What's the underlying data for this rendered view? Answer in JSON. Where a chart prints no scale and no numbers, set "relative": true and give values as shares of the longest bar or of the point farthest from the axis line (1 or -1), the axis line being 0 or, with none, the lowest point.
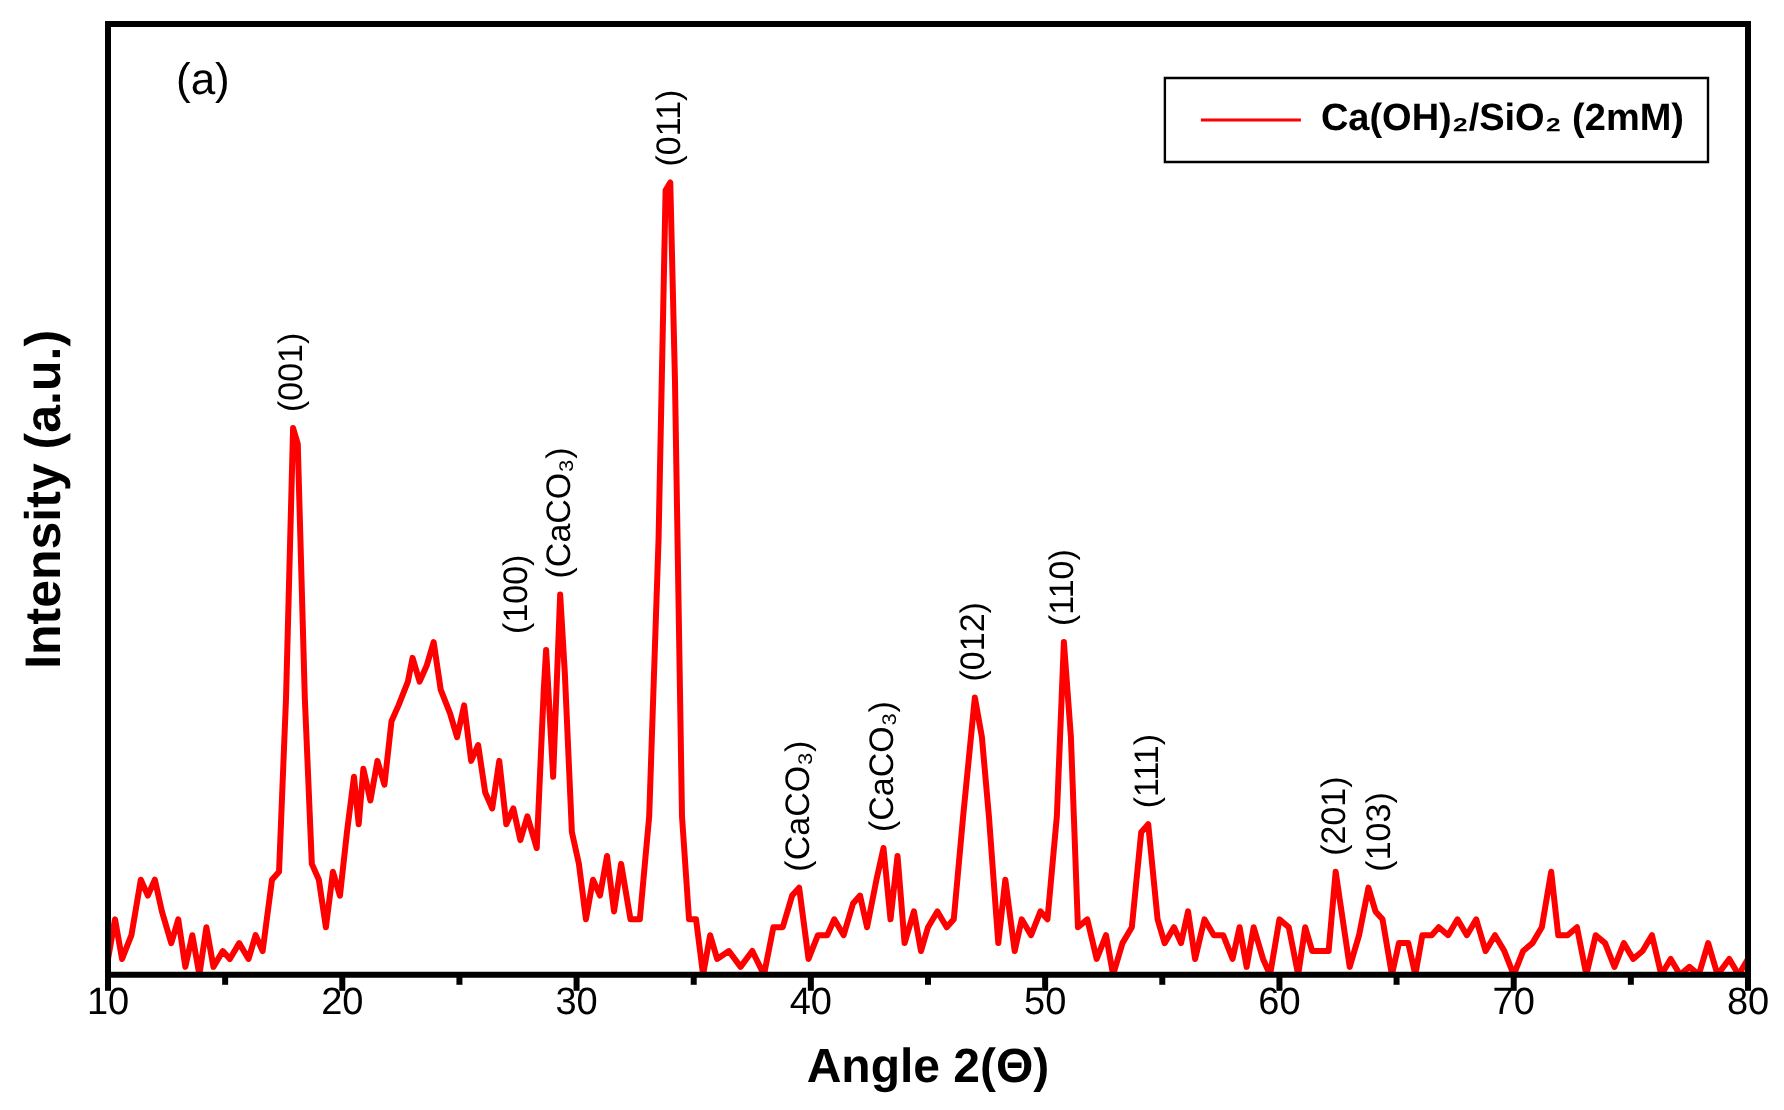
{
  "chart_data": {
    "type": "line",
    "relative": true,
    "xlabel": "Angle 2(Θ)",
    "ylabel": "Intensity (a.u.)",
    "xlim": [
      10,
      80
    ],
    "xticks": [
      10,
      {
        "value": 15,
        "label": null
      },
      20,
      {
        "value": 25,
        "label": null
      },
      30,
      {
        "value": 35,
        "label": null
      },
      40,
      {
        "value": 45,
        "label": null
      },
      50,
      {
        "value": 55,
        "label": null
      },
      60,
      {
        "value": 65,
        "label": null
      },
      70,
      {
        "value": 75,
        "label": null
      },
      80
    ],
    "grid": false,
    "legend": "top right",
    "marker": "none",
    "line_style": "solid",
    "series": [
      {
        "name": "Ca(OH)₂/SiO₂ (2mM)",
        "color": "#ff0000",
        "x": [
          10.0,
          10.3,
          10.6,
          11.0,
          11.4,
          11.7,
          12.0,
          12.3,
          12.7,
          13.0,
          13.3,
          13.6,
          13.9,
          14.2,
          14.5,
          14.9,
          15.2,
          15.6,
          16.0,
          16.3,
          16.6,
          17.0,
          17.3,
          17.6,
          17.9,
          18.1,
          18.4,
          18.7,
          19.0,
          19.3,
          19.6,
          19.9,
          20.2,
          20.5,
          20.7,
          20.9,
          21.2,
          21.5,
          21.8,
          22.1,
          22.4,
          22.8,
          23.0,
          23.3,
          23.6,
          23.9,
          24.2,
          24.6,
          24.9,
          25.2,
          25.5,
          25.8,
          26.1,
          26.4,
          26.7,
          27.0,
          27.3,
          27.6,
          27.9,
          28.3,
          28.6,
          28.7,
          29.0,
          29.3,
          29.5,
          29.8,
          30.1,
          30.4,
          30.7,
          31.0,
          31.3,
          31.6,
          31.9,
          32.3,
          32.7,
          33.1,
          33.5,
          33.8,
          34.0,
          34.2,
          34.5,
          34.8,
          35.1,
          35.4,
          35.7,
          36.0,
          36.5,
          37.0,
          37.5,
          38.0,
          38.4,
          38.8,
          39.2,
          39.5,
          39.9,
          40.3,
          40.7,
          41.0,
          41.4,
          41.8,
          42.1,
          42.4,
          42.8,
          43.1,
          43.4,
          43.7,
          44.0,
          44.4,
          44.7,
          45.0,
          45.4,
          45.8,
          46.1,
          46.5,
          47.0,
          47.3,
          47.6,
          48.0,
          48.3,
          48.7,
          49.0,
          49.4,
          49.8,
          50.1,
          50.5,
          50.8,
          51.1,
          51.4,
          51.8,
          52.2,
          52.6,
          52.9,
          53.3,
          53.7,
          54.1,
          54.4,
          54.8,
          55.1,
          55.5,
          55.8,
          56.1,
          56.4,
          56.8,
          57.2,
          57.6,
          58.0,
          58.3,
          58.6,
          58.9,
          59.3,
          59.6,
          60.0,
          60.4,
          60.8,
          61.1,
          61.4,
          61.8,
          62.1,
          62.4,
          62.7,
          63.0,
          63.4,
          63.8,
          64.1,
          64.4,
          64.8,
          65.1,
          65.5,
          65.8,
          66.1,
          66.5,
          66.8,
          67.2,
          67.6,
          68.0,
          68.4,
          68.8,
          69.2,
          69.6,
          70.0,
          70.4,
          70.8,
          71.2,
          71.6,
          71.9,
          72.3,
          72.7,
          73.1,
          73.5,
          73.9,
          74.3,
          74.7,
          75.1,
          75.5,
          75.9,
          76.3,
          76.7,
          77.1,
          77.5,
          77.9,
          78.3,
          78.7,
          79.2,
          79.6,
          80.0
        ],
        "values": [
          0.02,
          0.07,
          0.02,
          0.05,
          0.12,
          0.1,
          0.12,
          0.08,
          0.04,
          0.07,
          0.01,
          0.05,
          0.0,
          0.06,
          0.01,
          0.03,
          0.02,
          0.04,
          0.02,
          0.05,
          0.03,
          0.12,
          0.13,
          0.35,
          0.69,
          0.67,
          0.35,
          0.14,
          0.12,
          0.06,
          0.13,
          0.1,
          0.18,
          0.25,
          0.19,
          0.26,
          0.22,
          0.27,
          0.24,
          0.32,
          0.34,
          0.37,
          0.4,
          0.37,
          0.39,
          0.42,
          0.36,
          0.33,
          0.3,
          0.34,
          0.27,
          0.29,
          0.23,
          0.21,
          0.27,
          0.19,
          0.21,
          0.17,
          0.2,
          0.16,
          0.36,
          0.41,
          0.25,
          0.48,
          0.38,
          0.18,
          0.14,
          0.07,
          0.12,
          0.1,
          0.15,
          0.08,
          0.14,
          0.07,
          0.07,
          0.2,
          0.55,
          0.99,
          1.0,
          0.75,
          0.2,
          0.07,
          0.07,
          0.0,
          0.05,
          0.02,
          0.03,
          0.01,
          0.03,
          0.0,
          0.06,
          0.06,
          0.1,
          0.11,
          0.02,
          0.05,
          0.05,
          0.07,
          0.05,
          0.09,
          0.1,
          0.06,
          0.12,
          0.16,
          0.07,
          0.15,
          0.04,
          0.08,
          0.03,
          0.06,
          0.08,
          0.06,
          0.07,
          0.2,
          0.35,
          0.3,
          0.2,
          0.04,
          0.12,
          0.03,
          0.07,
          0.05,
          0.08,
          0.07,
          0.2,
          0.42,
          0.3,
          0.06,
          0.07,
          0.02,
          0.05,
          0.0,
          0.04,
          0.06,
          0.18,
          0.19,
          0.07,
          0.04,
          0.06,
          0.04,
          0.08,
          0.02,
          0.07,
          0.05,
          0.05,
          0.02,
          0.06,
          0.01,
          0.06,
          0.02,
          0.0,
          0.07,
          0.06,
          0.0,
          0.06,
          0.03,
          0.03,
          0.03,
          0.13,
          0.07,
          0.01,
          0.05,
          0.11,
          0.08,
          0.07,
          0.0,
          0.04,
          0.04,
          0.0,
          0.05,
          0.05,
          0.06,
          0.05,
          0.07,
          0.05,
          0.07,
          0.03,
          0.05,
          0.03,
          0.0,
          0.03,
          0.04,
          0.06,
          0.13,
          0.05,
          0.05,
          0.06,
          0.0,
          0.05,
          0.04,
          0.01,
          0.04,
          0.02,
          0.03,
          0.05,
          0.0,
          0.02,
          0.0,
          0.01,
          0.0,
          0.04,
          0.0,
          0.02,
          0.0,
          0.02
        ]
      }
    ],
    "annotations": [
      "(a)",
      {
        "text": "(001)",
        "x": 17.9,
        "y": 0.69
      },
      {
        "text": "(100)",
        "x": 28.7,
        "y": 0.41
      },
      {
        "text": "(CaCO₃)",
        "x": 29.3,
        "y": 0.48
      },
      {
        "text": "(011)",
        "x": 34.0,
        "y": 1.0
      },
      {
        "text": "(CaCO₃)",
        "x": 39.5,
        "y": 0.11
      },
      {
        "text": "(CaCO₃)",
        "x": 43.1,
        "y": 0.16
      },
      {
        "text": "(012)",
        "x": 47.0,
        "y": 0.35
      },
      {
        "text": "(110)",
        "x": 50.8,
        "y": 0.42
      },
      {
        "text": "(111)",
        "x": 54.4,
        "y": 0.19
      },
      {
        "text": "(201)",
        "x": 62.4,
        "y": 0.13
      },
      {
        "text": "(103)",
        "x": 64.3,
        "y": 0.11
      }
    ]
  }
}
